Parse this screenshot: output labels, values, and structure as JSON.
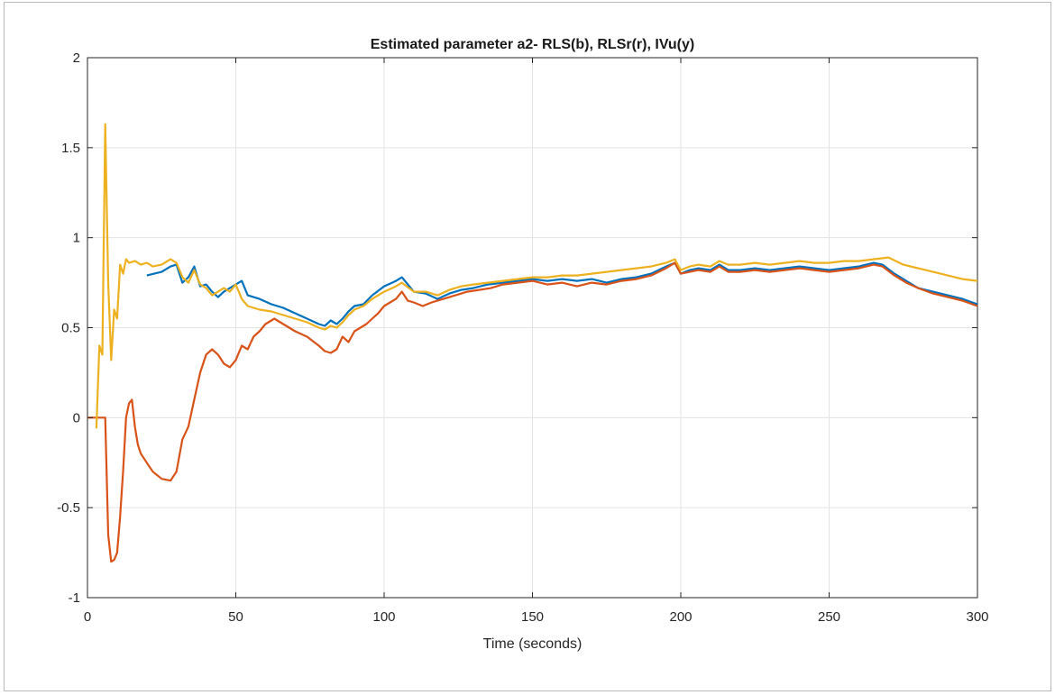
{
  "chart_data": {
    "type": "line",
    "title": "Estimated parameter a2- RLS(b), RLSr(r), IVu(y)",
    "xlabel": "Time (seconds)",
    "ylabel": "",
    "xlim": [
      0,
      300
    ],
    "ylim": [
      -1,
      2
    ],
    "xticks": [
      0,
      50,
      100,
      150,
      200,
      250,
      300
    ],
    "yticks": [
      -1,
      -0.5,
      0,
      0.5,
      1,
      1.5,
      2
    ],
    "xtick_labels": [
      "0",
      "50",
      "100",
      "150",
      "200",
      "250",
      "300"
    ],
    "ytick_labels": [
      "-1",
      "-0.5",
      "0",
      "0.5",
      "1",
      "1.5",
      "2"
    ],
    "grid": true,
    "legend": "none",
    "series": [
      {
        "color": "#0072BD",
        "x": [
          20,
          25,
          28,
          30,
          32,
          34,
          36,
          38,
          40,
          42,
          44,
          46,
          48,
          50,
          52,
          54,
          58,
          62,
          66,
          70,
          74,
          78,
          80,
          82,
          84,
          86,
          88,
          90,
          93,
          96,
          100,
          104,
          106,
          110,
          114,
          118,
          122,
          126,
          130,
          135,
          140,
          145,
          150,
          155,
          160,
          165,
          170,
          175,
          180,
          185,
          190,
          195,
          198,
          200,
          203,
          206,
          210,
          213,
          216,
          220,
          225,
          230,
          235,
          240,
          245,
          250,
          255,
          260,
          265,
          268,
          272,
          276,
          280,
          285,
          290,
          295,
          300
        ],
        "y": [
          0.79,
          0.81,
          0.84,
          0.85,
          0.75,
          0.78,
          0.84,
          0.73,
          0.74,
          0.7,
          0.67,
          0.7,
          0.72,
          0.74,
          0.76,
          0.68,
          0.66,
          0.63,
          0.61,
          0.58,
          0.55,
          0.52,
          0.51,
          0.54,
          0.52,
          0.55,
          0.59,
          0.62,
          0.63,
          0.68,
          0.73,
          0.76,
          0.78,
          0.7,
          0.69,
          0.66,
          0.69,
          0.71,
          0.72,
          0.74,
          0.75,
          0.76,
          0.77,
          0.76,
          0.77,
          0.76,
          0.77,
          0.75,
          0.77,
          0.78,
          0.8,
          0.84,
          0.86,
          0.8,
          0.82,
          0.83,
          0.82,
          0.85,
          0.82,
          0.82,
          0.83,
          0.82,
          0.83,
          0.84,
          0.83,
          0.82,
          0.83,
          0.84,
          0.86,
          0.85,
          0.8,
          0.76,
          0.72,
          0.7,
          0.68,
          0.66,
          0.63
        ]
      },
      {
        "color": "#D95319",
        "x": [
          0,
          6,
          7,
          8,
          9,
          10,
          11,
          12,
          13,
          14,
          15,
          16,
          17,
          18,
          20,
          22,
          25,
          28,
          30,
          32,
          34,
          36,
          38,
          40,
          42,
          44,
          46,
          48,
          50,
          52,
          54,
          56,
          58,
          60,
          63,
          66,
          70,
          74,
          78,
          80,
          82,
          84,
          86,
          88,
          90,
          92,
          94,
          96,
          98,
          100,
          102,
          104,
          106,
          108,
          110,
          113,
          116,
          120,
          124,
          128,
          132,
          136,
          140,
          145,
          150,
          155,
          160,
          165,
          170,
          175,
          180,
          185,
          190,
          195,
          198,
          200,
          203,
          206,
          210,
          213,
          216,
          220,
          225,
          230,
          235,
          240,
          245,
          250,
          255,
          260,
          265,
          268,
          272,
          276,
          280,
          285,
          290,
          295,
          300
        ],
        "y": [
          0.0,
          0.0,
          -0.65,
          -0.8,
          -0.79,
          -0.75,
          -0.55,
          -0.3,
          0.0,
          0.08,
          0.1,
          -0.05,
          -0.15,
          -0.2,
          -0.25,
          -0.3,
          -0.34,
          -0.35,
          -0.3,
          -0.12,
          -0.05,
          0.1,
          0.25,
          0.35,
          0.38,
          0.35,
          0.3,
          0.28,
          0.32,
          0.4,
          0.38,
          0.45,
          0.48,
          0.52,
          0.55,
          0.52,
          0.48,
          0.45,
          0.4,
          0.37,
          0.36,
          0.38,
          0.45,
          0.42,
          0.48,
          0.5,
          0.52,
          0.55,
          0.58,
          0.62,
          0.64,
          0.66,
          0.7,
          0.65,
          0.64,
          0.62,
          0.64,
          0.66,
          0.68,
          0.7,
          0.71,
          0.72,
          0.74,
          0.75,
          0.76,
          0.74,
          0.75,
          0.73,
          0.75,
          0.74,
          0.76,
          0.77,
          0.79,
          0.83,
          0.86,
          0.8,
          0.81,
          0.82,
          0.81,
          0.84,
          0.81,
          0.81,
          0.82,
          0.81,
          0.82,
          0.83,
          0.82,
          0.81,
          0.82,
          0.83,
          0.85,
          0.84,
          0.79,
          0.75,
          0.72,
          0.69,
          0.67,
          0.65,
          0.62
        ]
      },
      {
        "color": "#EDB120",
        "x": [
          3,
          4,
          5,
          6,
          7,
          8,
          9,
          10,
          11,
          12,
          13,
          14,
          16,
          18,
          20,
          22,
          25,
          28,
          30,
          32,
          34,
          36,
          38,
          40,
          42,
          44,
          46,
          48,
          50,
          52,
          54,
          58,
          62,
          66,
          70,
          74,
          78,
          80,
          82,
          84,
          86,
          88,
          90,
          93,
          96,
          100,
          104,
          106,
          110,
          114,
          118,
          122,
          126,
          130,
          135,
          140,
          145,
          150,
          155,
          160,
          165,
          170,
          175,
          180,
          185,
          190,
          195,
          198,
          200,
          203,
          206,
          210,
          213,
          216,
          220,
          225,
          230,
          235,
          240,
          245,
          250,
          255,
          260,
          265,
          270,
          275,
          280,
          285,
          290,
          295,
          300
        ],
        "y": [
          -0.06,
          0.4,
          0.35,
          1.63,
          0.75,
          0.32,
          0.6,
          0.55,
          0.85,
          0.8,
          0.88,
          0.86,
          0.87,
          0.85,
          0.86,
          0.84,
          0.85,
          0.88,
          0.86,
          0.78,
          0.75,
          0.82,
          0.74,
          0.72,
          0.68,
          0.7,
          0.72,
          0.7,
          0.74,
          0.66,
          0.62,
          0.6,
          0.59,
          0.57,
          0.55,
          0.53,
          0.5,
          0.49,
          0.51,
          0.5,
          0.53,
          0.57,
          0.6,
          0.62,
          0.66,
          0.7,
          0.73,
          0.75,
          0.7,
          0.7,
          0.68,
          0.71,
          0.73,
          0.74,
          0.75,
          0.76,
          0.77,
          0.78,
          0.78,
          0.79,
          0.79,
          0.8,
          0.81,
          0.82,
          0.83,
          0.84,
          0.86,
          0.88,
          0.82,
          0.84,
          0.85,
          0.84,
          0.87,
          0.85,
          0.85,
          0.86,
          0.85,
          0.86,
          0.87,
          0.86,
          0.86,
          0.87,
          0.87,
          0.88,
          0.89,
          0.85,
          0.83,
          0.81,
          0.79,
          0.77,
          0.76
        ]
      }
    ]
  }
}
